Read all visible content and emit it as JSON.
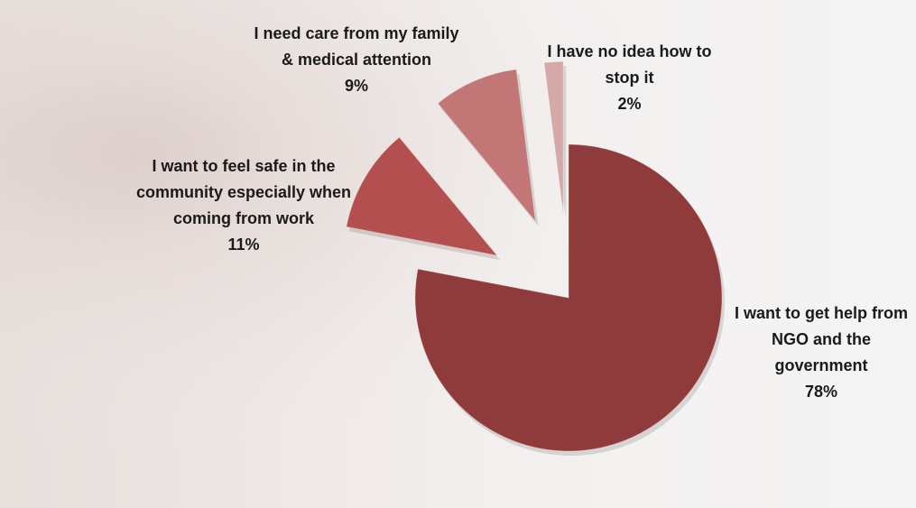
{
  "chart_data": {
    "type": "pie",
    "categories": [
      "I want to get help from NGO and the government",
      "I want to feel safe in the community especially when coming from work",
      "I need care from my family & medical attention",
      "I have no idea how to stop it"
    ],
    "values": [
      78,
      11,
      9,
      2
    ],
    "value_labels": [
      "78%",
      "11%",
      "9%",
      "2%"
    ],
    "colors": [
      "#8f3b3c",
      "#b44f4f",
      "#c27676",
      "#d6a9a8"
    ]
  }
}
